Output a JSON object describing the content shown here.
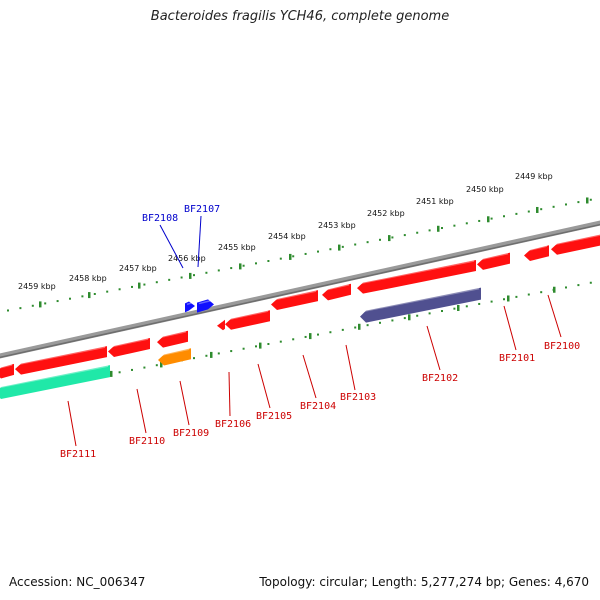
{
  "title": "Bacteroides fragilis YCH46, complete genome",
  "footer": {
    "accession": "Accession: NC_006347",
    "summary": "Topology: circular; Length: 5,277,274 bp; Genes: 4,670"
  },
  "colors": {
    "backbone": "#888888",
    "tick": "#2e8b2e",
    "forward_gene": "#ff1010",
    "reverse_label": "#cc0000",
    "forward_label": "#0000cc",
    "blue_gene": "#1010ff",
    "orange_gene": "#ff8c00",
    "teal_gene": "#20e8a8",
    "purple_gene": "#505090"
  },
  "kbp_labels": [
    "2449 kbp",
    "2450 kbp",
    "2451 kbp",
    "2452 kbp",
    "2453 kbp",
    "2454 kbp",
    "2455 kbp",
    "2456 kbp",
    "2457 kbp",
    "2458 kbp",
    "2459 kbp"
  ],
  "forward_genes": [
    "BF2108",
    "BF2107"
  ],
  "reverse_genes": [
    "BF2100",
    "BF2101",
    "BF2102",
    "BF2103",
    "BF2104",
    "BF2105",
    "BF2106",
    "BF2109",
    "BF2110",
    "BF2111"
  ]
}
